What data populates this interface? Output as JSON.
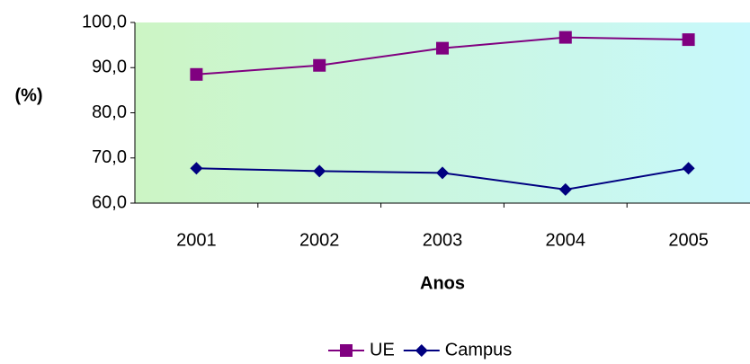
{
  "chart_data": {
    "type": "line",
    "categories": [
      "2001",
      "2002",
      "2003",
      "2004",
      "2005"
    ],
    "series": [
      {
        "name": "UE",
        "color": "#800080",
        "marker": "square",
        "values": [
          88.5,
          90.5,
          94.3,
          96.7,
          96.2
        ]
      },
      {
        "name": "Campus",
        "color": "#000080",
        "marker": "diamond",
        "values": [
          67.7,
          67.1,
          66.7,
          63.0,
          67.7
        ]
      }
    ],
    "ylim": [
      60,
      100
    ],
    "yticks": [
      {
        "value": 60,
        "label": "60,0"
      },
      {
        "value": 70,
        "label": "70,0"
      },
      {
        "value": 80,
        "label": "80,0"
      },
      {
        "value": 90,
        "label": "90,0"
      },
      {
        "value": 100,
        "label": "100,0"
      }
    ],
    "ylabel": "(%)",
    "xlabel": "Anos",
    "grid": false,
    "legend": "bottom"
  }
}
